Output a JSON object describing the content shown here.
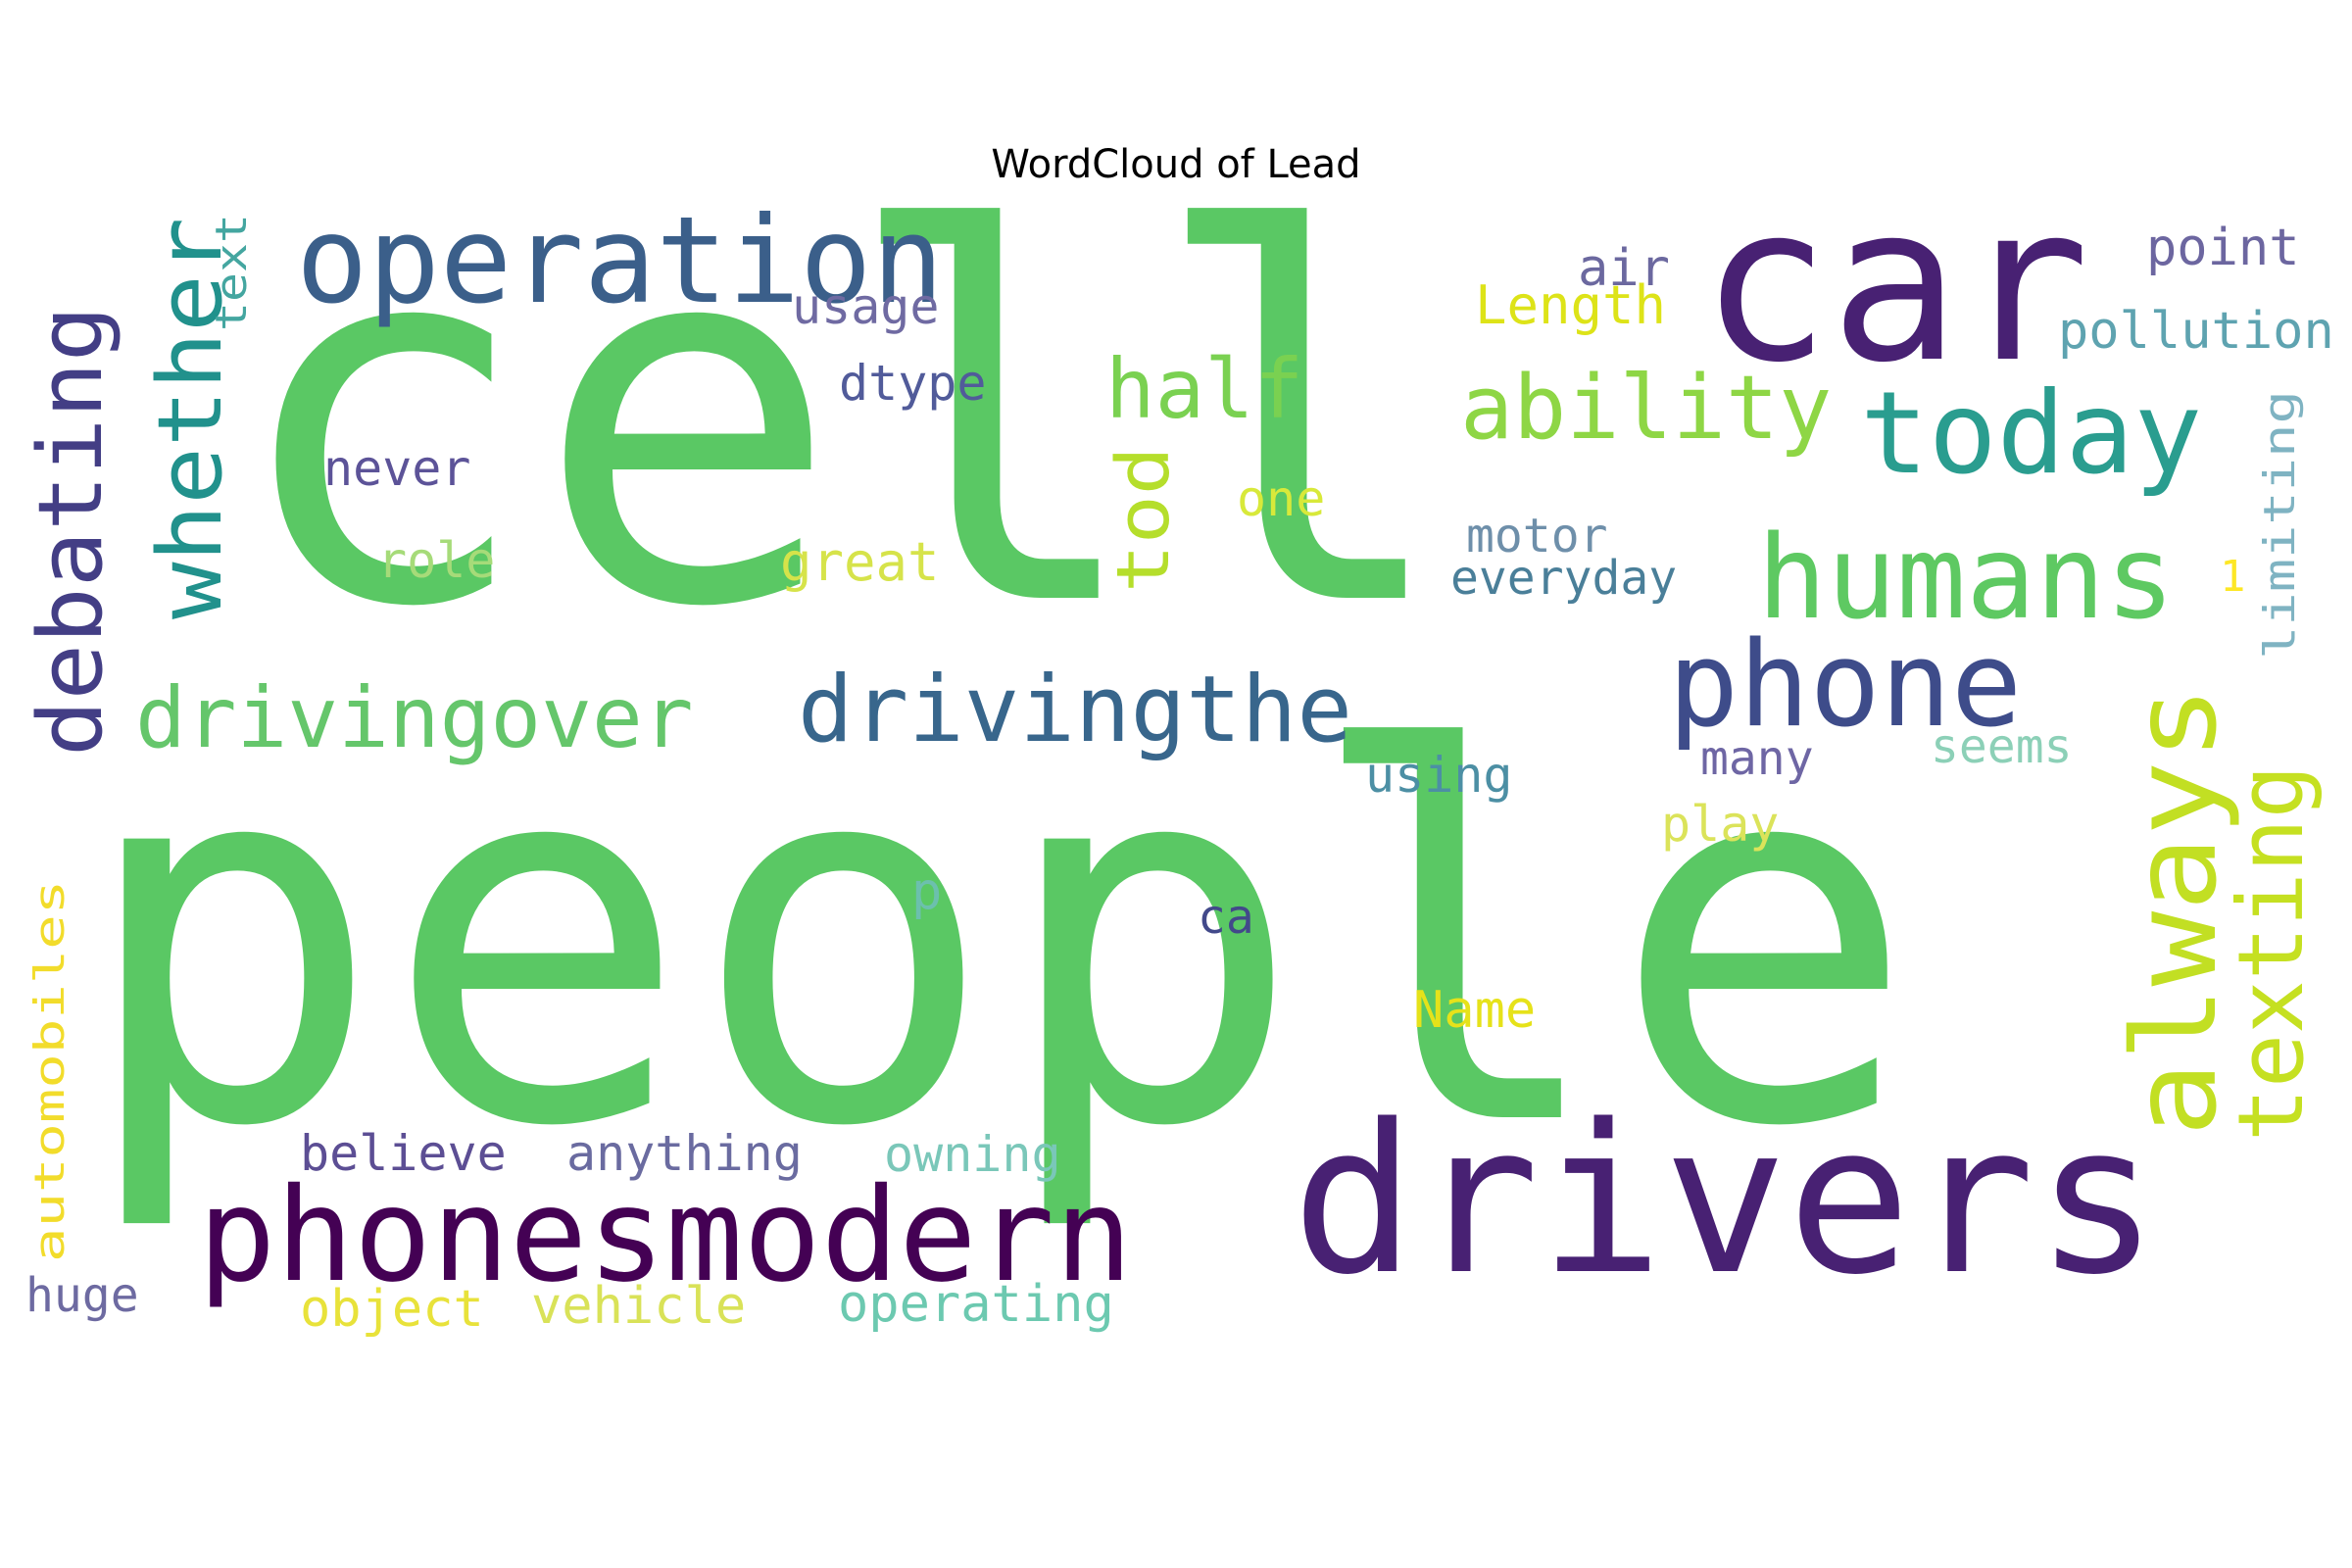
{
  "title": "WordCloud of Lead",
  "words": [
    {
      "text": "cell",
      "color": "#5ac864"
    },
    {
      "text": "people",
      "color": "#5ac864"
    },
    {
      "text": "drivers",
      "color": "#482173"
    },
    {
      "text": "car",
      "color": "#482173"
    },
    {
      "text": "phonesmodern",
      "color": "#440154"
    },
    {
      "text": "operation",
      "color": "#3b5f8a"
    },
    {
      "text": "phone",
      "color": "#3e4c8a"
    },
    {
      "text": "humans",
      "color": "#5ec962"
    },
    {
      "text": "today",
      "color": "#2a9d8f"
    },
    {
      "text": "drivingthe",
      "color": "#38668c"
    },
    {
      "text": "drivingover",
      "color": "#65c66b"
    },
    {
      "text": "always",
      "color": "#c2df23"
    },
    {
      "text": "texting",
      "color": "#c5e021"
    },
    {
      "text": "ability",
      "color": "#8ed645"
    },
    {
      "text": "debating",
      "color": "#433e85"
    },
    {
      "text": "whether",
      "color": "#21918c"
    },
    {
      "text": "half",
      "color": "#7ad151"
    },
    {
      "text": "tod",
      "color": "#b5de2b"
    },
    {
      "text": "text",
      "color": "#44a6a0"
    },
    {
      "text": "usage",
      "color": "#6f6aa2"
    },
    {
      "text": "dtype",
      "color": "#515b9a"
    },
    {
      "text": "air",
      "color": "#6b689f"
    },
    {
      "text": "Length",
      "color": "#dde318"
    },
    {
      "text": "point",
      "color": "#6c66a0"
    },
    {
      "text": "pollution",
      "color": "#5ea3b0"
    },
    {
      "text": "never",
      "color": "#5c5398"
    },
    {
      "text": "one",
      "color": "#d8e93a"
    },
    {
      "text": "role",
      "color": "#a6db79"
    },
    {
      "text": "great",
      "color": "#d6e34a"
    },
    {
      "text": "motor",
      "color": "#6e8faa"
    },
    {
      "text": "everyday",
      "color": "#4a7f99"
    },
    {
      "text": "limiting",
      "color": "#7fb3c2"
    },
    {
      "text": "1",
      "color": "#fde725"
    },
    {
      "text": "many",
      "color": "#6e66a4"
    },
    {
      "text": "seems",
      "color": "#8cd0b7"
    },
    {
      "text": "using",
      "color": "#4c8fa4"
    },
    {
      "text": "play",
      "color": "#dbe35a"
    },
    {
      "text": "p",
      "color": "#6cc0ad"
    },
    {
      "text": "ca",
      "color": "#42498a"
    },
    {
      "text": "Name",
      "color": "#e6e21a"
    },
    {
      "text": "automobiles",
      "color": "#f2dc2b"
    },
    {
      "text": "believe",
      "color": "#5c4e94"
    },
    {
      "text": "anything",
      "color": "#6a6ba0"
    },
    {
      "text": "owning",
      "color": "#7ac7b9"
    },
    {
      "text": "huge",
      "color": "#6d6aa1"
    },
    {
      "text": "object",
      "color": "#e8e23a"
    },
    {
      "text": "vehicle",
      "color": "#d9e258"
    },
    {
      "text": "operating",
      "color": "#6cc9b0"
    }
  ]
}
